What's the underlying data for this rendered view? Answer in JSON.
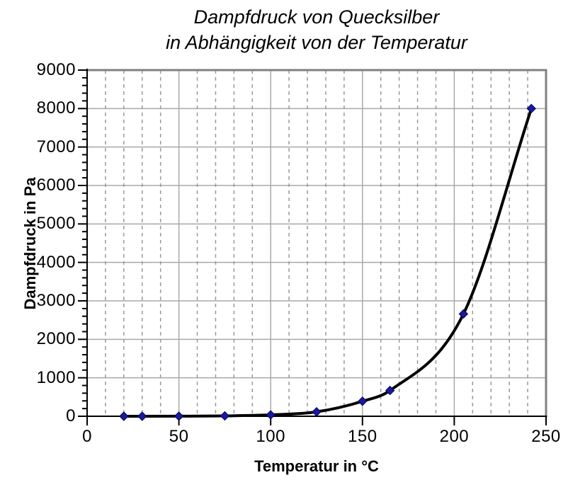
{
  "title": {
    "line1": "Dampfdruck von Quecksilber",
    "line2": "in Abhängigkeit von der Temperatur"
  },
  "chart_data": {
    "type": "line",
    "title": "Dampfdruck von Quecksilber in Abhängigkeit von der Temperatur",
    "xlabel": "Temperatur in °C",
    "ylabel": "Dampfdruck in Pa",
    "x": [
      20,
      30,
      50,
      75,
      100,
      125,
      150,
      165,
      205,
      242
    ],
    "y": [
      0,
      0,
      2,
      10,
      36,
      115,
      390,
      670,
      2660,
      8000
    ],
    "series": [
      {
        "name": "Dampfdruck von Quecksilber",
        "values": [
          0,
          0,
          2,
          10,
          36,
          115,
          390,
          670,
          2660,
          8000
        ]
      }
    ],
    "xlim": [
      0,
      250
    ],
    "ylim": [
      0,
      9000
    ],
    "xticks": [
      0,
      50,
      100,
      150,
      200,
      250
    ],
    "yticks": [
      0,
      1000,
      2000,
      3000,
      4000,
      5000,
      6000,
      7000,
      8000,
      9000
    ],
    "x_minor_step": 10,
    "y_minor_step": 200,
    "grid": {
      "horizontal": "solid every 1000 Pa",
      "vertical_minor": "dashed every 10 °C",
      "vertical_major": "solid every 50 °C"
    },
    "legend": "none",
    "marker": "diamond",
    "colors": {
      "curve": "#000000",
      "marker_fill": "#1a1a99",
      "marker_edge": "#000060",
      "grid_solid": "#a8a8a8",
      "grid_dashed": "#999999",
      "plot_border": "#808080",
      "axis": "#000000",
      "text": "#000000",
      "background": "#ffffff"
    }
  }
}
